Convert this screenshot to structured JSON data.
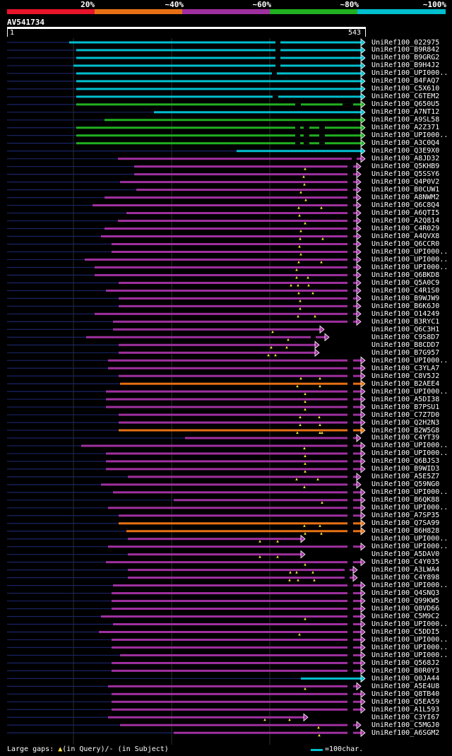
{
  "legend": {
    "labels": [
      "20%",
      "~40%",
      "~60%",
      "~80%",
      "~100%"
    ],
    "colors": [
      "#e8142a",
      "#e87014",
      "#a030a0",
      "#20b020",
      "#00bfcf"
    ]
  },
  "query": {
    "title": "AV541734",
    "start": "1",
    "end": "543"
  },
  "footer": {
    "gaps_prefix": "Large gaps: ",
    "gaps_query": "(in Query)/",
    "gaps_subject": "- (in Subject)",
    "scale": "=100char."
  },
  "hits": [
    {
      "id": "UniRef100_022975",
      "start": 98,
      "end": 511,
      "c": 4,
      "t": [],
      "d": [
        [
          390,
          397
        ]
      ]
    },
    {
      "id": "UniRef100_B9R842",
      "start": 108,
      "end": 511,
      "c": 4,
      "t": [],
      "d": [
        [
          390,
          397
        ]
      ]
    },
    {
      "id": "UniRef100_B9GRG2",
      "start": 108,
      "end": 511,
      "c": 4,
      "t": [],
      "d": [
        [
          390,
          397
        ]
      ]
    },
    {
      "id": "UniRef100_B9H4J2",
      "start": 104,
      "end": 511,
      "c": 4,
      "t": [],
      "d": [
        [
          390,
          397
        ]
      ]
    },
    {
      "id": "UniRef100_UPI000..",
      "start": 108,
      "end": 511,
      "c": 4,
      "t": [],
      "d": [
        [
          385,
          392
        ]
      ]
    },
    {
      "id": "UniRef100_B4FAQ7",
      "start": 108,
      "end": 511,
      "c": 4,
      "t": [],
      "d": []
    },
    {
      "id": "UniRef100_C5X610",
      "start": 108,
      "end": 511,
      "c": 4,
      "t": [],
      "d": []
    },
    {
      "id": "UniRef100_C6TEM2",
      "start": 108,
      "end": 511,
      "c": 4,
      "t": [],
      "d": [
        [
          386,
          394
        ]
      ]
    },
    {
      "id": "UniRef100_Q650U5",
      "start": 108,
      "end": 511,
      "c": 3,
      "t": [],
      "d": [
        [
          418,
          426
        ],
        [
          485,
          500
        ]
      ]
    },
    {
      "id": "UniRef100_A7NT12",
      "start": 218,
      "end": 511,
      "c": 4,
      "t": [],
      "d": []
    },
    {
      "id": "UniRef100_A9SL58",
      "start": 148,
      "end": 511,
      "c": 3,
      "t": [],
      "d": []
    },
    {
      "id": "UniRef100_A2Z371",
      "start": 108,
      "end": 511,
      "c": 3,
      "t": [],
      "d": [
        [
          418,
          425
        ],
        [
          430,
          438
        ],
        [
          452,
          460
        ]
      ]
    },
    {
      "id": "UniRef100_UPI000..",
      "start": 108,
      "end": 511,
      "c": 3,
      "t": [],
      "d": [
        [
          418,
          425
        ],
        [
          430,
          438
        ],
        [
          452,
          460
        ]
      ]
    },
    {
      "id": "UniRef100_A3C0Q4",
      "start": 108,
      "end": 511,
      "c": 3,
      "t": [],
      "d": [
        [
          418,
          425
        ],
        [
          430,
          438
        ],
        [
          452,
          460
        ]
      ]
    },
    {
      "id": "UniRef100_Q3E9X0",
      "start": 335,
      "end": 511,
      "c": 4,
      "t": [],
      "d": []
    },
    {
      "id": "UniRef100_A8JD32",
      "start": 167,
      "end": 511,
      "c": 2,
      "t": [],
      "d": [
        [
          498,
          505
        ]
      ]
    },
    {
      "id": "UniRef100_Q5KHB9",
      "start": 190,
      "end": 505,
      "c": 2,
      "t": [
        432
      ],
      "d": [
        [
          492,
          500
        ]
      ]
    },
    {
      "id": "UniRef100_Q5SSY6",
      "start": 190,
      "end": 505,
      "c": 2,
      "t": [
        430
      ],
      "d": [
        [
          492,
          500
        ]
      ]
    },
    {
      "id": "UniRef100_Q4P0V2",
      "start": 170,
      "end": 505,
      "c": 2,
      "t": [
        431
      ],
      "d": [
        [
          492,
          500
        ]
      ]
    },
    {
      "id": "UniRef100_B0CUW1",
      "start": 193,
      "end": 505,
      "c": 2,
      "t": [
        426
      ],
      "d": [
        [
          492,
          500
        ]
      ]
    },
    {
      "id": "UniRef100_A8NWM2",
      "start": 148,
      "end": 505,
      "c": 2,
      "t": [
        433
      ],
      "d": [
        [
          492,
          500
        ]
      ]
    },
    {
      "id": "UniRef100_Q6C8Q4",
      "start": 131,
      "end": 505,
      "c": 2,
      "t": [
        423,
        455
      ],
      "d": [
        [
          492,
          500
        ]
      ]
    },
    {
      "id": "UniRef100_A6QTI5",
      "start": 179,
      "end": 505,
      "c": 2,
      "t": [
        424
      ],
      "d": [
        [
          492,
          500
        ]
      ]
    },
    {
      "id": "UniRef100_A2Q814",
      "start": 167,
      "end": 505,
      "c": 2,
      "t": [
        432
      ],
      "d": [
        [
          492,
          500
        ]
      ]
    },
    {
      "id": "UniRef100_C4R029",
      "start": 148,
      "end": 505,
      "c": 2,
      "t": [
        426
      ],
      "d": [
        [
          492,
          500
        ]
      ]
    },
    {
      "id": "UniRef100_A4QVX8",
      "start": 143,
      "end": 505,
      "c": 2,
      "t": [
        425,
        457
      ],
      "d": [
        [
          492,
          500
        ]
      ]
    },
    {
      "id": "UniRef100_Q6CCR0",
      "start": 158,
      "end": 505,
      "c": 2,
      "t": [
        424
      ],
      "d": [
        [
          492,
          500
        ]
      ]
    },
    {
      "id": "UniRef100_UPI000..",
      "start": 158,
      "end": 505,
      "c": 2,
      "t": [
        426
      ],
      "d": [
        [
          492,
          500
        ]
      ]
    },
    {
      "id": "UniRef100_UPI000..",
      "start": 120,
      "end": 505,
      "c": 2,
      "t": [
        423,
        455
      ],
      "d": [
        [
          492,
          500
        ]
      ]
    },
    {
      "id": "UniRef100_UPI000..",
      "start": 134,
      "end": 505,
      "c": 2,
      "t": [
        420
      ],
      "d": [
        [
          492,
          500
        ]
      ]
    },
    {
      "id": "UniRef100_Q6BKD8",
      "start": 134,
      "end": 505,
      "c": 2,
      "t": [
        420,
        436
      ],
      "d": [
        [
          492,
          500
        ]
      ]
    },
    {
      "id": "UniRef100_Q5A0C9",
      "start": 168,
      "end": 505,
      "c": 2,
      "t": [
        412,
        422,
        437
      ],
      "d": [
        [
          492,
          500
        ]
      ]
    },
    {
      "id": "UniRef100_C4R1S0",
      "start": 150,
      "end": 505,
      "c": 2,
      "t": [
        423,
        443
      ],
      "d": [
        [
          492,
          500
        ]
      ]
    },
    {
      "id": "UniRef100_B9WJW9",
      "start": 168,
      "end": 505,
      "c": 2,
      "t": [
        425
      ],
      "d": [
        [
          492,
          500
        ]
      ]
    },
    {
      "id": "UniRef100_B6K6J0",
      "start": 168,
      "end": 505,
      "c": 2,
      "t": [
        425
      ],
      "d": [
        [
          492,
          500
        ]
      ]
    },
    {
      "id": "UniRef100_O14249",
      "start": 134,
      "end": 505,
      "c": 2,
      "t": [
        422,
        446
      ],
      "d": [
        [
          492,
          500
        ]
      ]
    },
    {
      "id": "UniRef100_B3RYC1",
      "start": 160,
      "end": 505,
      "c": 2,
      "t": [],
      "d": [
        [
          492,
          500
        ]
      ]
    },
    {
      "id": "UniRef100_Q6C3H1",
      "start": 160,
      "end": 453,
      "c": 2,
      "t": [
        386
      ],
      "d": []
    },
    {
      "id": "UniRef100_C9S8D7",
      "start": 122,
      "end": 460,
      "c": 2,
      "t": [
        408
      ],
      "d": [
        [
          440,
          447
        ]
      ]
    },
    {
      "id": "UniRef100_B8CDD7",
      "start": 168,
      "end": 446,
      "c": 2,
      "t": [
        384,
        406
      ],
      "d": []
    },
    {
      "id": "UniRef100_B7G957",
      "start": 168,
      "end": 446,
      "c": 2,
      "t": [
        380,
        390
      ],
      "d": []
    },
    {
      "id": "UniRef100_UPI000..",
      "start": 153,
      "end": 511,
      "c": 2,
      "t": [],
      "d": [
        [
          492,
          500
        ]
      ]
    },
    {
      "id": "UniRef100_C3YLA7",
      "start": 153,
      "end": 511,
      "c": 2,
      "t": [],
      "d": [
        [
          492,
          500
        ]
      ]
    },
    {
      "id": "UniRef100_C8V5J2",
      "start": 168,
      "end": 511,
      "c": 2,
      "t": [
        426,
        453
      ],
      "d": [
        [
          492,
          500
        ]
      ]
    },
    {
      "id": "UniRef100_B2AEE4",
      "start": 170,
      "end": 511,
      "c": 1,
      "t": [
        421,
        453
      ],
      "d": [
        [
          492,
          500
        ]
      ]
    },
    {
      "id": "UniRef100_UPI000..",
      "start": 150,
      "end": 511,
      "c": 2,
      "t": [
        432
      ],
      "d": [
        [
          492,
          500
        ]
      ]
    },
    {
      "id": "UniRef100_A5DI38",
      "start": 150,
      "end": 511,
      "c": 2,
      "t": [
        432
      ],
      "d": [
        [
          492,
          500
        ]
      ]
    },
    {
      "id": "UniRef100_B7PSU1",
      "start": 150,
      "end": 511,
      "c": 2,
      "t": [
        432
      ],
      "d": [
        [
          492,
          500
        ]
      ]
    },
    {
      "id": "UniRef100_C7Z7D0",
      "start": 168,
      "end": 511,
      "c": 2,
      "t": [
        425,
        452
      ],
      "d": [
        [
          492,
          500
        ]
      ]
    },
    {
      "id": "UniRef100_Q2H2N3",
      "start": 168,
      "end": 511,
      "c": 2,
      "t": [
        425,
        453
      ],
      "d": [
        [
          492,
          500
        ]
      ]
    },
    {
      "id": "UniRef100_B2W5G8",
      "start": 168,
      "end": 511,
      "c": 1,
      "t": [
        421,
        453,
        456
      ],
      "d": [
        [
          492,
          500
        ]
      ]
    },
    {
      "id": "UniRef100_C4YT39",
      "start": 262,
      "end": 505,
      "c": 2,
      "t": [],
      "d": [
        [
          492,
          500
        ]
      ]
    },
    {
      "id": "UniRef100_UPI000..",
      "start": 115,
      "end": 511,
      "c": 2,
      "t": [
        431
      ],
      "d": [
        [
          492,
          500
        ]
      ]
    },
    {
      "id": "UniRef100_UPI000..",
      "start": 150,
      "end": 511,
      "c": 2,
      "t": [
        432
      ],
      "d": [
        [
          492,
          500
        ]
      ]
    },
    {
      "id": "UniRef100_Q6BJS3",
      "start": 150,
      "end": 511,
      "c": 2,
      "t": [
        432
      ],
      "d": [
        [
          492,
          500
        ]
      ]
    },
    {
      "id": "UniRef100_B9WID3",
      "start": 150,
      "end": 511,
      "c": 2,
      "t": [
        432
      ],
      "d": [
        [
          492,
          500
        ]
      ]
    },
    {
      "id": "UniRef100_A5E5Z7",
      "start": 181,
      "end": 505,
      "c": 2,
      "t": [
        420,
        450
      ],
      "d": [
        [
          492,
          500
        ]
      ]
    },
    {
      "id": "UniRef100_Q59NG0",
      "start": 143,
      "end": 505,
      "c": 2,
      "t": [
        431
      ],
      "d": [
        [
          492,
          500
        ]
      ]
    },
    {
      "id": "UniRef100_UPI000..",
      "start": 160,
      "end": 511,
      "c": 2,
      "t": [],
      "d": [
        [
          492,
          500
        ]
      ]
    },
    {
      "id": "UniRef100_B6QK88",
      "start": 246,
      "end": 511,
      "c": 2,
      "t": [
        456
      ],
      "d": [
        [
          492,
          500
        ]
      ]
    },
    {
      "id": "UniRef100_UPI000..",
      "start": 153,
      "end": 511,
      "c": 2,
      "t": [],
      "d": [
        [
          492,
          500
        ]
      ]
    },
    {
      "id": "UniRef100_A7SP35",
      "start": 168,
      "end": 511,
      "c": 2,
      "t": [],
      "d": [
        [
          492,
          500
        ]
      ]
    },
    {
      "id": "UniRef100_Q7SA99",
      "start": 168,
      "end": 511,
      "c": 1,
      "t": [
        431,
        453
      ],
      "d": [
        [
          492,
          500
        ]
      ]
    },
    {
      "id": "UniRef100_B6H828",
      "start": 179,
      "end": 511,
      "c": 1,
      "t": [
        432,
        455
      ],
      "d": [
        [
          492,
          500
        ]
      ]
    },
    {
      "id": "UniRef100_UPI000..",
      "start": 181,
      "end": 426,
      "c": 2,
      "t": [
        368,
        393
      ],
      "d": []
    },
    {
      "id": "UniRef100_UPI000..",
      "start": 153,
      "end": 511,
      "c": 2,
      "t": [],
      "d": [
        [
          492,
          500
        ]
      ]
    },
    {
      "id": "UniRef100_A5DAV0",
      "start": 181,
      "end": 426,
      "c": 2,
      "t": [
        368,
        393
      ],
      "d": []
    },
    {
      "id": "UniRef100_C4Y035",
      "start": 150,
      "end": 511,
      "c": 2,
      "t": [
        432
      ],
      "d": [
        [
          492,
          500
        ]
      ]
    },
    {
      "id": "UniRef100_A3LWA4",
      "start": 181,
      "end": 500,
      "c": 2,
      "t": [
        411,
        420,
        443
      ],
      "d": [
        [
          488,
          495
        ]
      ]
    },
    {
      "id": "UniRef100_C4Y898",
      "start": 181,
      "end": 500,
      "c": 2,
      "t": [
        410,
        422,
        445
      ],
      "d": [
        [
          488,
          495
        ]
      ]
    },
    {
      "id": "UniRef100_UPI000..",
      "start": 160,
      "end": 511,
      "c": 2,
      "t": [],
      "d": [
        [
          492,
          500
        ]
      ]
    },
    {
      "id": "UniRef100_Q4SNQ3",
      "start": 158,
      "end": 511,
      "c": 2,
      "t": [],
      "d": [
        [
          492,
          500
        ]
      ]
    },
    {
      "id": "UniRef100_Q99KW5",
      "start": 158,
      "end": 511,
      "c": 2,
      "t": [],
      "d": [
        [
          492,
          500
        ]
      ]
    },
    {
      "id": "UniRef100_Q8VD66",
      "start": 158,
      "end": 511,
      "c": 2,
      "t": [],
      "d": [
        [
          492,
          500
        ]
      ]
    },
    {
      "id": "UniRef100_C5M9C2",
      "start": 143,
      "end": 511,
      "c": 2,
      "t": [
        432
      ],
      "d": [
        [
          492,
          500
        ]
      ]
    },
    {
      "id": "UniRef100_UPI000..",
      "start": 160,
      "end": 511,
      "c": 2,
      "t": [],
      "d": [
        [
          492,
          500
        ]
      ]
    },
    {
      "id": "UniRef100_C5DDI5",
      "start": 140,
      "end": 511,
      "c": 2,
      "t": [
        424
      ],
      "d": [
        [
          492,
          500
        ]
      ]
    },
    {
      "id": "UniRef100_UPI000..",
      "start": 158,
      "end": 511,
      "c": 2,
      "t": [],
      "d": [
        [
          492,
          500
        ]
      ]
    },
    {
      "id": "UniRef100_UPI000..",
      "start": 158,
      "end": 511,
      "c": 2,
      "t": [],
      "d": [
        [
          492,
          500
        ]
      ]
    },
    {
      "id": "UniRef100_UPI000..",
      "start": 170,
      "end": 511,
      "c": 2,
      "t": [],
      "d": [
        [
          492,
          500
        ]
      ]
    },
    {
      "id": "UniRef100_Q568J2",
      "start": 158,
      "end": 511,
      "c": 2,
      "t": [],
      "d": [
        [
          492,
          500
        ]
      ]
    },
    {
      "id": "UniRef100_B0R0Y3",
      "start": 158,
      "end": 511,
      "c": 2,
      "t": [],
      "d": [
        [
          492,
          500
        ]
      ]
    },
    {
      "id": "UniRef100_Q0JA44",
      "start": 426,
      "end": 511,
      "c": 4,
      "t": [],
      "d": []
    },
    {
      "id": "UniRef100_A5E4U8",
      "start": 153,
      "end": 505,
      "c": 2,
      "t": [
        432
      ],
      "d": [
        [
          492,
          500
        ]
      ]
    },
    {
      "id": "UniRef100_Q8TB40",
      "start": 158,
      "end": 511,
      "c": 2,
      "t": [],
      "d": [
        [
          492,
          500
        ]
      ]
    },
    {
      "id": "UniRef100_Q5EA59",
      "start": 158,
      "end": 511,
      "c": 2,
      "t": [],
      "d": [
        [
          492,
          500
        ]
      ]
    },
    {
      "id": "UniRef100_A1L593",
      "start": 158,
      "end": 511,
      "c": 2,
      "t": [],
      "d": [
        [
          492,
          500
        ]
      ]
    },
    {
      "id": "UniRef100_C3YI67",
      "start": 153,
      "end": 430,
      "c": 2,
      "t": [
        375,
        410
      ],
      "d": []
    },
    {
      "id": "UniRef100_C5MGJ0",
      "start": 170,
      "end": 505,
      "c": 2,
      "t": [
        451
      ],
      "d": [
        [
          492,
          500
        ]
      ]
    },
    {
      "id": "UniRef100_A6SGM2",
      "start": 246,
      "end": 511,
      "c": 2,
      "t": [
        452
      ],
      "d": [
        [
          492,
          500
        ]
      ]
    }
  ]
}
